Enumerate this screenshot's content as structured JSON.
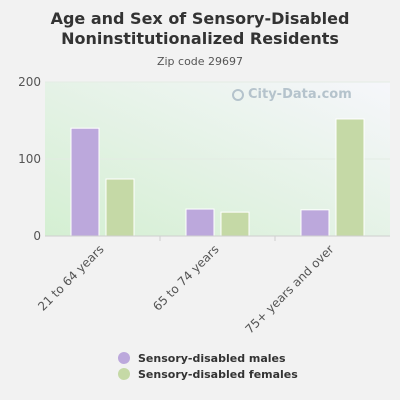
{
  "chart_data": {
    "type": "bar",
    "title": "Age and Sex of Sensory-Disabled Noninstitutionalized Residents",
    "subtitle": "Zip code 29697",
    "categories": [
      "21 to 64 years",
      "65 to 74 years",
      "75+ years and over"
    ],
    "series": [
      {
        "name": "Sensory-disabled males",
        "color": "#bca8dc",
        "values": [
          140,
          35,
          34
        ]
      },
      {
        "name": "Sensory-disabled females",
        "color": "#c5d9a6",
        "values": [
          74,
          31,
          152
        ]
      }
    ],
    "ylim": [
      0,
      200
    ],
    "yticks": [
      0,
      100,
      200
    ],
    "grid": true,
    "legend_position": "bottom",
    "watermark": "City-Data.com"
  }
}
